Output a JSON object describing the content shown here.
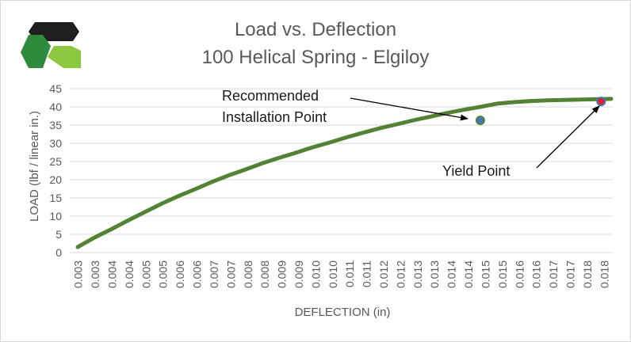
{
  "chart_data": {
    "type": "line",
    "title": "Load vs. Deflection",
    "subtitle": "100 Helical Spring - Elgiloy",
    "xlabel": "DEFLECTION (in)",
    "ylabel": "LOAD (lbf / linear in.)",
    "ylim": [
      0,
      45
    ],
    "yticks": [
      0,
      5,
      10,
      15,
      20,
      25,
      30,
      35,
      40,
      45
    ],
    "xtick_labels": [
      "0.003",
      "0.003",
      "0.004",
      "0.004",
      "0.005",
      "0.005",
      "0.006",
      "0.006",
      "0.007",
      "0.007",
      "0.008",
      "0.008",
      "0.009",
      "0.009",
      "0.010",
      "0.010",
      "0.011",
      "0.011",
      "0.012",
      "0.012",
      "0.013",
      "0.013",
      "0.014",
      "0.014",
      "0.015",
      "0.015",
      "0.016",
      "0.016",
      "0.017",
      "0.017",
      "0.018",
      "0.018"
    ],
    "grid": true,
    "legend": "none",
    "series_color": "#548235",
    "x": [
      0.0026,
      0.0031,
      0.0036,
      0.0041,
      0.0046,
      0.0051,
      0.0056,
      0.0061,
      0.0066,
      0.0071,
      0.0076,
      0.0081,
      0.0086,
      0.0091,
      0.0096,
      0.0101,
      0.0106,
      0.0111,
      0.0116,
      0.0121,
      0.0126,
      0.0131,
      0.0136,
      0.0141,
      0.0146,
      0.0151,
      0.0156,
      0.0161,
      0.0166,
      0.0171,
      0.0176,
      0.0181,
      0.0185
    ],
    "series": [
      {
        "values": [
          1.5,
          4.1,
          6.4,
          8.8,
          11.1,
          13.4,
          15.5,
          17.4,
          19.4,
          21.2,
          22.8,
          24.5,
          26.0,
          27.4,
          28.9,
          30.2,
          31.6,
          32.9,
          34.1,
          35.2,
          36.3,
          37.3,
          38.3,
          39.2,
          40.0,
          40.9,
          41.3,
          41.6,
          41.8,
          41.9,
          42.0,
          42.1,
          42.2
        ]
      }
    ],
    "markers": [
      {
        "x": 0.0146,
        "y": 36.3,
        "fill": "#4472c4",
        "stroke": "#548235"
      },
      {
        "x": 0.0182,
        "y": 41.5,
        "fill": "#e02020",
        "stroke": "#4472c4"
      }
    ],
    "annotations": [
      {
        "lines": [
          "Recommended",
          "Installation Point"
        ]
      },
      {
        "lines": [
          "Yield Point"
        ]
      }
    ]
  },
  "logo": {
    "colors": {
      "dark": "#1f1f1f",
      "green": "#2e8b3e",
      "lime": "#8dc63f"
    }
  }
}
